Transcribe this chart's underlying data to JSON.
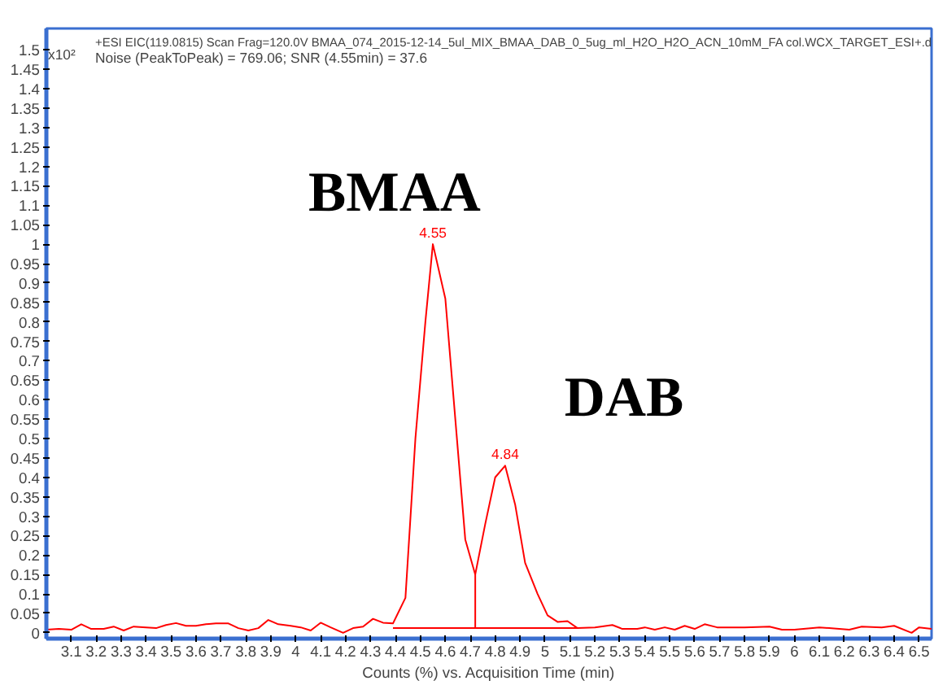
{
  "chart_data": {
    "type": "line",
    "title": "+ESI EIC(119.0815) Scan Frag=120.0V BMAA_074_2015-12-14_5ul_MIX_BMAA_DAB_0_5ug_ml_H2O_H2O_ACN_10mM_FA col.WCX_TARGET_ESI+.d",
    "subtitle": "Noise (PeakToPeak) = 769.06; SNR (4.55min) = 37.6",
    "xlabel": "Counts (%) vs. Acquisition Time (min)",
    "ylabel": "x10²",
    "series": [
      {
        "color": "#ff0000",
        "x": [
          3.0,
          3.05,
          3.1,
          3.14,
          3.18,
          3.23,
          3.27,
          3.31,
          3.35,
          3.4,
          3.44,
          3.48,
          3.52,
          3.56,
          3.6,
          3.64,
          3.68,
          3.73,
          3.77,
          3.81,
          3.85,
          3.89,
          3.93,
          3.98,
          4.02,
          4.06,
          4.1,
          4.14,
          4.19,
          4.23,
          4.27,
          4.31,
          4.35,
          4.39,
          4.44,
          4.48,
          4.52,
          4.55,
          4.6,
          4.64,
          4.68,
          4.72,
          4.76,
          4.8,
          4.84,
          4.88,
          4.92,
          4.97,
          5.01,
          5.05,
          5.09,
          5.13,
          5.2,
          5.27,
          5.31,
          5.37,
          5.4,
          5.44,
          5.48,
          5.52,
          5.56,
          5.6,
          5.64,
          5.69,
          5.8,
          5.9,
          5.95,
          6.0,
          6.1,
          6.22,
          6.27,
          6.35,
          6.4,
          6.47,
          6.5,
          6.55
        ],
        "values": [
          0.008,
          0.01,
          0.008,
          0.022,
          0.01,
          0.01,
          0.016,
          0.006,
          0.016,
          0.014,
          0.012,
          0.02,
          0.025,
          0.018,
          0.018,
          0.022,
          0.024,
          0.024,
          0.012,
          0.006,
          0.012,
          0.033,
          0.022,
          0.018,
          0.014,
          0.006,
          0.026,
          0.014,
          0.0,
          0.012,
          0.016,
          0.036,
          0.026,
          0.024,
          0.09,
          0.5,
          0.8,
          1.0,
          0.86,
          0.55,
          0.24,
          0.15,
          0.28,
          0.4,
          0.43,
          0.33,
          0.18,
          0.1,
          0.045,
          0.028,
          0.03,
          0.012,
          0.014,
          0.02,
          0.01,
          0.01,
          0.014,
          0.008,
          0.014,
          0.008,
          0.018,
          0.01,
          0.022,
          0.014,
          0.014,
          0.016,
          0.008,
          0.008,
          0.014,
          0.008,
          0.016,
          0.014,
          0.018,
          0.0,
          0.014,
          0.01
        ]
      },
      {
        "color": "#ff0000",
        "x": [
          4.39,
          5.13
        ],
        "values": [
          0.012,
          0.012
        ]
      },
      {
        "color": "#ff0000",
        "x": [
          4.72,
          4.72
        ],
        "values": [
          0.012,
          0.15
        ]
      }
    ],
    "annotations": [
      {
        "text": "4.55",
        "x": 4.55,
        "y": 1.0
      },
      {
        "text": "4.84",
        "x": 4.84,
        "y": 0.43
      },
      "BMAA",
      "DAB"
    ],
    "xlim": [
      3.0,
      6.55
    ],
    "ylim": [
      -0.015,
      1.555
    ],
    "xticks": [
      3.1,
      3.2,
      3.3,
      3.4,
      3.5,
      3.6,
      3.7,
      3.8,
      3.9,
      4,
      4.1,
      4.2,
      4.3,
      4.4,
      4.5,
      4.6,
      4.7,
      4.8,
      4.9,
      5,
      5.1,
      5.2,
      5.3,
      5.4,
      5.5,
      5.6,
      5.7,
      5.8,
      5.9,
      6,
      6.1,
      6.2,
      6.3,
      6.4,
      6.5
    ],
    "yticks": [
      0,
      0.05,
      0.1,
      0.15,
      0.2,
      0.25,
      0.3,
      0.35,
      0.4,
      0.45,
      0.5,
      0.55,
      0.6,
      0.65,
      0.7,
      0.75,
      0.8,
      0.85,
      0.9,
      0.95,
      1,
      1.05,
      1.1,
      1.15,
      1.2,
      1.25,
      1.3,
      1.35,
      1.4,
      1.45,
      1.5
    ],
    "grid": false
  }
}
